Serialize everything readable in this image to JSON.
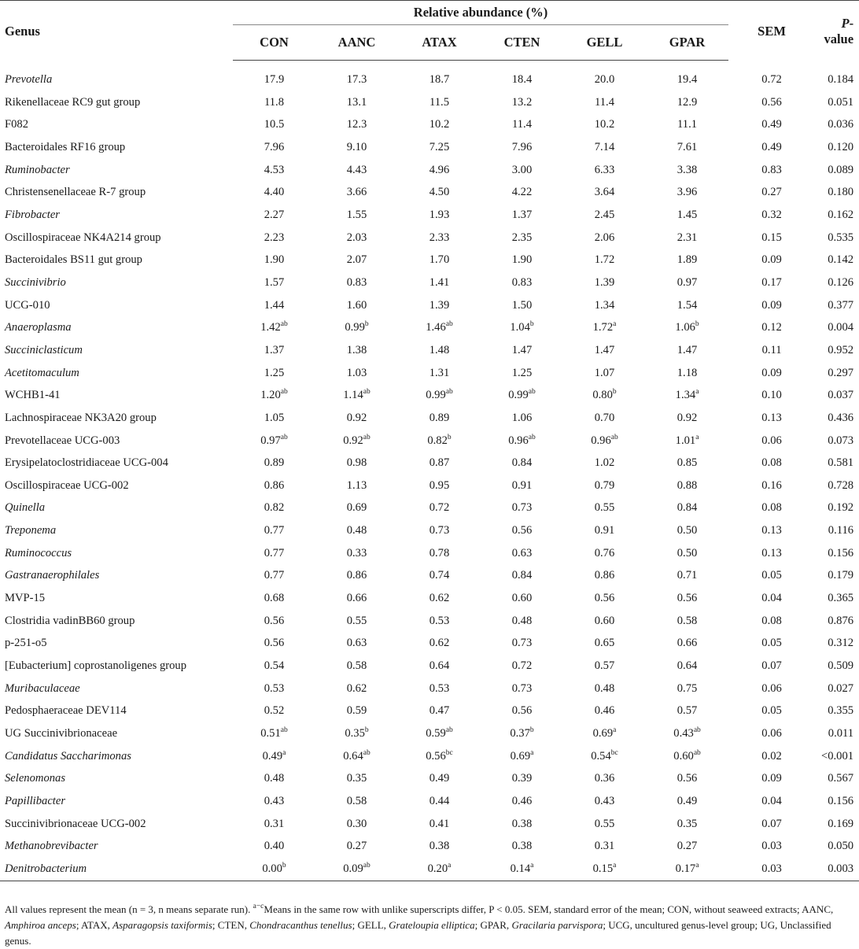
{
  "headers": {
    "genus": "Genus",
    "relative_abundance": "Relative abundance (%)",
    "groups": [
      "CON",
      "AANC",
      "ATAX",
      "CTEN",
      "GELL",
      "GPAR"
    ],
    "sem": "SEM",
    "p_value_italic": "P",
    "p_value_rest": "-value"
  },
  "rows": [
    {
      "genus": "Prevotella",
      "italic": true,
      "values": [
        [
          "17.9",
          ""
        ],
        [
          "17.3",
          ""
        ],
        [
          "18.7",
          ""
        ],
        [
          "18.4",
          ""
        ],
        [
          "20.0",
          ""
        ],
        [
          "19.4",
          ""
        ]
      ],
      "sem": "0.72",
      "p": "0.184"
    },
    {
      "genus": "Rikenellaceae RC9 gut group",
      "italic": false,
      "values": [
        [
          "11.8",
          ""
        ],
        [
          "13.1",
          ""
        ],
        [
          "11.5",
          ""
        ],
        [
          "13.2",
          ""
        ],
        [
          "11.4",
          ""
        ],
        [
          "12.9",
          ""
        ]
      ],
      "sem": "0.56",
      "p": "0.051"
    },
    {
      "genus": "F082",
      "italic": false,
      "values": [
        [
          "10.5",
          ""
        ],
        [
          "12.3",
          ""
        ],
        [
          "10.2",
          ""
        ],
        [
          "11.4",
          ""
        ],
        [
          "10.2",
          ""
        ],
        [
          "11.1",
          ""
        ]
      ],
      "sem": "0.49",
      "p": "0.036"
    },
    {
      "genus": "Bacteroidales RF16 group",
      "italic": false,
      "values": [
        [
          "7.96",
          ""
        ],
        [
          "9.10",
          ""
        ],
        [
          "7.25",
          ""
        ],
        [
          "7.96",
          ""
        ],
        [
          "7.14",
          ""
        ],
        [
          "7.61",
          ""
        ]
      ],
      "sem": "0.49",
      "p": "0.120"
    },
    {
      "genus": "Ruminobacter",
      "italic": true,
      "values": [
        [
          "4.53",
          ""
        ],
        [
          "4.43",
          ""
        ],
        [
          "4.96",
          ""
        ],
        [
          "3.00",
          ""
        ],
        [
          "6.33",
          ""
        ],
        [
          "3.38",
          ""
        ]
      ],
      "sem": "0.83",
      "p": "0.089"
    },
    {
      "genus": "Christensenellaceae R-7 group",
      "italic": false,
      "values": [
        [
          "4.40",
          ""
        ],
        [
          "3.66",
          ""
        ],
        [
          "4.50",
          ""
        ],
        [
          "4.22",
          ""
        ],
        [
          "3.64",
          ""
        ],
        [
          "3.96",
          ""
        ]
      ],
      "sem": "0.27",
      "p": "0.180"
    },
    {
      "genus": "Fibrobacter",
      "italic": true,
      "values": [
        [
          "2.27",
          ""
        ],
        [
          "1.55",
          ""
        ],
        [
          "1.93",
          ""
        ],
        [
          "1.37",
          ""
        ],
        [
          "2.45",
          ""
        ],
        [
          "1.45",
          ""
        ]
      ],
      "sem": "0.32",
      "p": "0.162"
    },
    {
      "genus": "Oscillospiraceae NK4A214 group",
      "italic": false,
      "values": [
        [
          "2.23",
          ""
        ],
        [
          "2.03",
          ""
        ],
        [
          "2.33",
          ""
        ],
        [
          "2.35",
          ""
        ],
        [
          "2.06",
          ""
        ],
        [
          "2.31",
          ""
        ]
      ],
      "sem": "0.15",
      "p": "0.535"
    },
    {
      "genus": "Bacteroidales BS11 gut group",
      "italic": false,
      "values": [
        [
          "1.90",
          ""
        ],
        [
          "2.07",
          ""
        ],
        [
          "1.70",
          ""
        ],
        [
          "1.90",
          ""
        ],
        [
          "1.72",
          ""
        ],
        [
          "1.89",
          ""
        ]
      ],
      "sem": "0.09",
      "p": "0.142"
    },
    {
      "genus": "Succinivibrio",
      "italic": true,
      "values": [
        [
          "1.57",
          ""
        ],
        [
          "0.83",
          ""
        ],
        [
          "1.41",
          ""
        ],
        [
          "0.83",
          ""
        ],
        [
          "1.39",
          ""
        ],
        [
          "0.97",
          ""
        ]
      ],
      "sem": "0.17",
      "p": "0.126"
    },
    {
      "genus": "UCG-010",
      "italic": false,
      "values": [
        [
          "1.44",
          ""
        ],
        [
          "1.60",
          ""
        ],
        [
          "1.39",
          ""
        ],
        [
          "1.50",
          ""
        ],
        [
          "1.34",
          ""
        ],
        [
          "1.54",
          ""
        ]
      ],
      "sem": "0.09",
      "p": "0.377"
    },
    {
      "genus": "Anaeroplasma",
      "italic": true,
      "values": [
        [
          "1.42",
          "ab"
        ],
        [
          "0.99",
          "b"
        ],
        [
          "1.46",
          "ab"
        ],
        [
          "1.04",
          "b"
        ],
        [
          "1.72",
          "a"
        ],
        [
          "1.06",
          "b"
        ]
      ],
      "sem": "0.12",
      "p": "0.004"
    },
    {
      "genus": "Succiniclasticum",
      "italic": true,
      "values": [
        [
          "1.37",
          ""
        ],
        [
          "1.38",
          ""
        ],
        [
          "1.48",
          ""
        ],
        [
          "1.47",
          ""
        ],
        [
          "1.47",
          ""
        ],
        [
          "1.47",
          ""
        ]
      ],
      "sem": "0.11",
      "p": "0.952"
    },
    {
      "genus": "Acetitomaculum",
      "italic": true,
      "values": [
        [
          "1.25",
          ""
        ],
        [
          "1.03",
          ""
        ],
        [
          "1.31",
          ""
        ],
        [
          "1.25",
          ""
        ],
        [
          "1.07",
          ""
        ],
        [
          "1.18",
          ""
        ]
      ],
      "sem": "0.09",
      "p": "0.297"
    },
    {
      "genus": "WCHB1-41",
      "italic": false,
      "values": [
        [
          "1.20",
          "ab"
        ],
        [
          "1.14",
          "ab"
        ],
        [
          "0.99",
          "ab"
        ],
        [
          "0.99",
          "ab"
        ],
        [
          "0.80",
          "b"
        ],
        [
          "1.34",
          "a"
        ]
      ],
      "sem": "0.10",
      "p": "0.037"
    },
    {
      "genus": "Lachnospiraceae NK3A20 group",
      "italic": false,
      "values": [
        [
          "1.05",
          ""
        ],
        [
          "0.92",
          ""
        ],
        [
          "0.89",
          ""
        ],
        [
          "1.06",
          ""
        ],
        [
          "0.70",
          ""
        ],
        [
          "0.92",
          ""
        ]
      ],
      "sem": "0.13",
      "p": "0.436"
    },
    {
      "genus": "Prevotellaceae UCG-003",
      "italic": false,
      "values": [
        [
          "0.97",
          "ab"
        ],
        [
          "0.92",
          "ab"
        ],
        [
          "0.82",
          "b"
        ],
        [
          "0.96",
          "ab"
        ],
        [
          "0.96",
          "ab"
        ],
        [
          "1.01",
          "a"
        ]
      ],
      "sem": "0.06",
      "p": "0.073"
    },
    {
      "genus": "Erysipelatoclostridiaceae UCG-004",
      "italic": false,
      "values": [
        [
          "0.89",
          ""
        ],
        [
          "0.98",
          ""
        ],
        [
          "0.87",
          ""
        ],
        [
          "0.84",
          ""
        ],
        [
          "1.02",
          ""
        ],
        [
          "0.85",
          ""
        ]
      ],
      "sem": "0.08",
      "p": "0.581"
    },
    {
      "genus": "Oscillospiraceae UCG-002",
      "italic": false,
      "values": [
        [
          "0.86",
          ""
        ],
        [
          "1.13",
          ""
        ],
        [
          "0.95",
          ""
        ],
        [
          "0.91",
          ""
        ],
        [
          "0.79",
          ""
        ],
        [
          "0.88",
          ""
        ]
      ],
      "sem": "0.16",
      "p": "0.728"
    },
    {
      "genus": "Quinella",
      "italic": true,
      "values": [
        [
          "0.82",
          ""
        ],
        [
          "0.69",
          ""
        ],
        [
          "0.72",
          ""
        ],
        [
          "0.73",
          ""
        ],
        [
          "0.55",
          ""
        ],
        [
          "0.84",
          ""
        ]
      ],
      "sem": "0.08",
      "p": "0.192"
    },
    {
      "genus": "Treponema",
      "italic": true,
      "values": [
        [
          "0.77",
          ""
        ],
        [
          "0.48",
          ""
        ],
        [
          "0.73",
          ""
        ],
        [
          "0.56",
          ""
        ],
        [
          "0.91",
          ""
        ],
        [
          "0.50",
          ""
        ]
      ],
      "sem": "0.13",
      "p": "0.116"
    },
    {
      "genus": "Ruminococcus",
      "italic": true,
      "values": [
        [
          "0.77",
          ""
        ],
        [
          "0.33",
          ""
        ],
        [
          "0.78",
          ""
        ],
        [
          "0.63",
          ""
        ],
        [
          "0.76",
          ""
        ],
        [
          "0.50",
          ""
        ]
      ],
      "sem": "0.13",
      "p": "0.156"
    },
    {
      "genus": "Gastranaerophilales",
      "italic": true,
      "values": [
        [
          "0.77",
          ""
        ],
        [
          "0.86",
          ""
        ],
        [
          "0.74",
          ""
        ],
        [
          "0.84",
          ""
        ],
        [
          "0.86",
          ""
        ],
        [
          "0.71",
          ""
        ]
      ],
      "sem": "0.05",
      "p": "0.179"
    },
    {
      "genus": "MVP-15",
      "italic": false,
      "values": [
        [
          "0.68",
          ""
        ],
        [
          "0.66",
          ""
        ],
        [
          "0.62",
          ""
        ],
        [
          "0.60",
          ""
        ],
        [
          "0.56",
          ""
        ],
        [
          "0.56",
          ""
        ]
      ],
      "sem": "0.04",
      "p": "0.365"
    },
    {
      "genus": "Clostridia vadinBB60 group",
      "italic": false,
      "values": [
        [
          "0.56",
          ""
        ],
        [
          "0.55",
          ""
        ],
        [
          "0.53",
          ""
        ],
        [
          "0.48",
          ""
        ],
        [
          "0.60",
          ""
        ],
        [
          "0.58",
          ""
        ]
      ],
      "sem": "0.08",
      "p": "0.876"
    },
    {
      "genus": "p-251-o5",
      "italic": false,
      "values": [
        [
          "0.56",
          ""
        ],
        [
          "0.63",
          ""
        ],
        [
          "0.62",
          ""
        ],
        [
          "0.73",
          ""
        ],
        [
          "0.65",
          ""
        ],
        [
          "0.66",
          ""
        ]
      ],
      "sem": "0.05",
      "p": "0.312"
    },
    {
      "genus": "[Eubacterium] coprostanoligenes group",
      "italic": false,
      "values": [
        [
          "0.54",
          ""
        ],
        [
          "0.58",
          ""
        ],
        [
          "0.64",
          ""
        ],
        [
          "0.72",
          ""
        ],
        [
          "0.57",
          ""
        ],
        [
          "0.64",
          ""
        ]
      ],
      "sem": "0.07",
      "p": "0.509"
    },
    {
      "genus": "Muribaculaceae",
      "italic": true,
      "values": [
        [
          "0.53",
          ""
        ],
        [
          "0.62",
          ""
        ],
        [
          "0.53",
          ""
        ],
        [
          "0.73",
          ""
        ],
        [
          "0.48",
          ""
        ],
        [
          "0.75",
          ""
        ]
      ],
      "sem": "0.06",
      "p": "0.027"
    },
    {
      "genus": "Pedosphaeraceae DEV114",
      "italic": false,
      "values": [
        [
          "0.52",
          ""
        ],
        [
          "0.59",
          ""
        ],
        [
          "0.47",
          ""
        ],
        [
          "0.56",
          ""
        ],
        [
          "0.46",
          ""
        ],
        [
          "0.57",
          ""
        ]
      ],
      "sem": "0.05",
      "p": "0.355"
    },
    {
      "genus": "UG Succinivibrionaceae",
      "italic": false,
      "values": [
        [
          "0.51",
          "ab"
        ],
        [
          "0.35",
          "b"
        ],
        [
          "0.59",
          "ab"
        ],
        [
          "0.37",
          "b"
        ],
        [
          "0.69",
          "a"
        ],
        [
          "0.43",
          "ab"
        ]
      ],
      "sem": "0.06",
      "p": "0.011"
    },
    {
      "genus": "Candidatus Saccharimonas",
      "italic": true,
      "values": [
        [
          "0.49",
          "a"
        ],
        [
          "0.64",
          "ab"
        ],
        [
          "0.56",
          "bc"
        ],
        [
          "0.69",
          "a"
        ],
        [
          "0.54",
          "bc"
        ],
        [
          "0.60",
          "ab"
        ]
      ],
      "sem": "0.02",
      "p": "<0.001"
    },
    {
      "genus": "Selenomonas",
      "italic": true,
      "values": [
        [
          "0.48",
          ""
        ],
        [
          "0.35",
          ""
        ],
        [
          "0.49",
          ""
        ],
        [
          "0.39",
          ""
        ],
        [
          "0.36",
          ""
        ],
        [
          "0.56",
          ""
        ]
      ],
      "sem": "0.09",
      "p": "0.567"
    },
    {
      "genus": "Papillibacter",
      "italic": true,
      "values": [
        [
          "0.43",
          ""
        ],
        [
          "0.58",
          ""
        ],
        [
          "0.44",
          ""
        ],
        [
          "0.46",
          ""
        ],
        [
          "0.43",
          ""
        ],
        [
          "0.49",
          ""
        ]
      ],
      "sem": "0.04",
      "p": "0.156"
    },
    {
      "genus": "Succinivibrionaceae UCG-002",
      "italic": false,
      "values": [
        [
          "0.31",
          ""
        ],
        [
          "0.30",
          ""
        ],
        [
          "0.41",
          ""
        ],
        [
          "0.38",
          ""
        ],
        [
          "0.55",
          ""
        ],
        [
          "0.35",
          ""
        ]
      ],
      "sem": "0.07",
      "p": "0.169"
    },
    {
      "genus": "Methanobrevibacter",
      "italic": true,
      "values": [
        [
          "0.40",
          ""
        ],
        [
          "0.27",
          ""
        ],
        [
          "0.38",
          ""
        ],
        [
          "0.38",
          ""
        ],
        [
          "0.31",
          ""
        ],
        [
          "0.27",
          ""
        ]
      ],
      "sem": "0.03",
      "p": "0.050"
    },
    {
      "genus": "Denitrobacterium",
      "italic": true,
      "values": [
        [
          "0.00",
          "b"
        ],
        [
          "0.09",
          "ab"
        ],
        [
          "0.20",
          "a"
        ],
        [
          "0.14",
          "a"
        ],
        [
          "0.15",
          "a"
        ],
        [
          "0.17",
          "a"
        ]
      ],
      "sem": "0.03",
      "p": "0.003"
    }
  ],
  "footnote": [
    {
      "t": "All values represent the mean (n = 3, n means separate run). ",
      "i": false
    },
    {
      "t": "a−c",
      "i": false,
      "sup": true
    },
    {
      "t": "Means in the same row with unlike superscripts differ, P < 0.05. SEM, standard error of the mean; CON, without seaweed extracts; AANC, ",
      "i": false
    },
    {
      "t": "Amphiroa anceps",
      "i": true
    },
    {
      "t": "; ATAX, ",
      "i": false
    },
    {
      "t": "Asparagopsis taxiformis",
      "i": true
    },
    {
      "t": "; CTEN, ",
      "i": false
    },
    {
      "t": "Chondracanthus tenellus",
      "i": true
    },
    {
      "t": "; GELL, ",
      "i": false
    },
    {
      "t": "Grateloupia elliptica",
      "i": true
    },
    {
      "t": "; GPAR, ",
      "i": false
    },
    {
      "t": "Gracilaria parvispora",
      "i": true
    },
    {
      "t": "; UCG, uncultured genus-level group; UG, Unclassified genus.",
      "i": false
    }
  ]
}
